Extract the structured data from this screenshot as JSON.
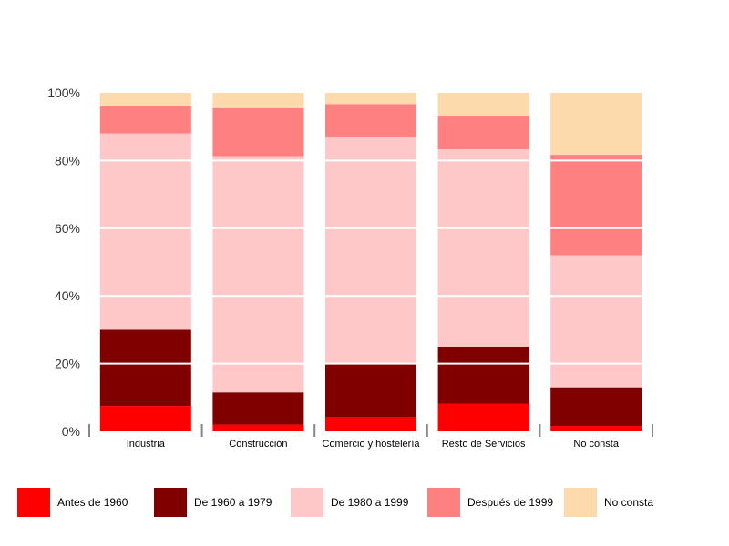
{
  "chart_data": {
    "type": "bar",
    "stacked": "percent",
    "categories": [
      "Industria",
      "Construcción",
      "Comercio y hostelería",
      "Resto de Servicios",
      "No consta"
    ],
    "series": [
      {
        "name": "Antes de 1960",
        "color": "#ff0000",
        "values": [
          7.5,
          2.0,
          4.3,
          8.2,
          1.6
        ]
      },
      {
        "name": "De 1960 a 1979",
        "color": "#800000",
        "values": [
          22.5,
          9.5,
          15.7,
          16.8,
          11.4
        ]
      },
      {
        "name": "De 1980 a 1999",
        "color": "#ffc8c8",
        "values": [
          58.0,
          69.8,
          66.8,
          58.3,
          39.0
        ]
      },
      {
        "name": "Después de 1999",
        "color": "#ff8080",
        "values": [
          8.0,
          14.2,
          9.9,
          9.7,
          29.7
        ]
      },
      {
        "name": "No consta",
        "color": "#fcdaab",
        "values": [
          4.0,
          4.5,
          3.3,
          7.0,
          18.3
        ]
      }
    ],
    "y_ticks": [
      "0%",
      "20%",
      "40%",
      "60%",
      "80%",
      "100%"
    ],
    "ylim": [
      0,
      100
    ],
    "grid": "horizontal",
    "grid_color": "#ffffff",
    "legend_position": "bottom"
  }
}
